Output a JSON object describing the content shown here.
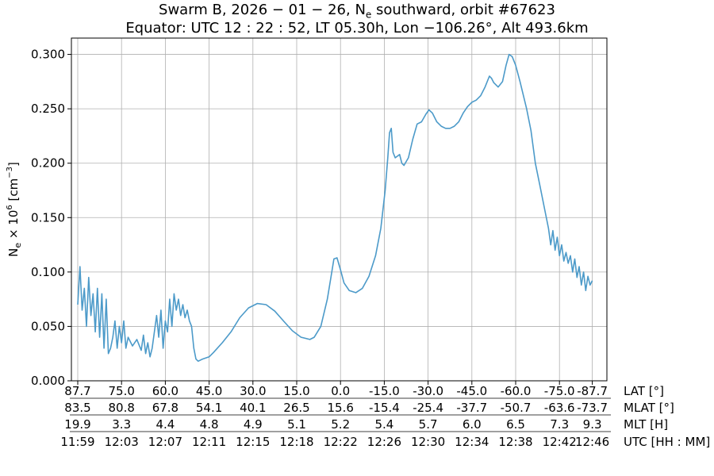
{
  "title": {
    "line1_prefix": "Swarm B,  2026 − 01 − 26,  N",
    "line1_sub": "e",
    "line1_suffix": " southward,  orbit #67623",
    "line2": "Equator:  UTC 12 : 22 : 52,  LT 05.30h,  Lon  −106.26°,  Alt 493.6km"
  },
  "chart_data": {
    "type": "line",
    "ylabel": "N_e × 10^6 [cm^-3]",
    "ylim": [
      0.0,
      0.315
    ],
    "yticks": [
      "0.000",
      "0.050",
      "0.100",
      "0.150",
      "0.200",
      "0.250",
      "0.300"
    ],
    "grid": true,
    "line_color": "#4c9ac9",
    "x_tick_rows": [
      {
        "label": "LAT [°]",
        "values": [
          "87.7",
          "75.0",
          "60.0",
          "45.0",
          "30.0",
          "15.0",
          "0.0",
          "-15.0",
          "-30.0",
          "-45.0",
          "-60.0",
          "-75.0",
          "-87.7"
        ]
      },
      {
        "label": "MLAT [°]",
        "values": [
          "83.5",
          "80.8",
          "67.8",
          "54.1",
          "40.1",
          "26.5",
          "15.6",
          "-15.4",
          "-25.4",
          "-37.7",
          "-50.7",
          "-63.6",
          "-73.7"
        ]
      },
      {
        "label": "MLT [H]",
        "values": [
          "19.9",
          "3.3",
          "4.4",
          "4.8",
          "4.9",
          "5.1",
          "5.2",
          "5.4",
          "5.7",
          "6.0",
          "6.5",
          "7.3",
          "9.3"
        ]
      },
      {
        "label": "UTC [HH : MM]",
        "values": [
          "11:59",
          "12:03",
          "12:07",
          "12:11",
          "12:15",
          "12:18",
          "12:22",
          "12:26",
          "12:30",
          "12:34",
          "12:38",
          "12:42",
          "12:46"
        ]
      }
    ],
    "x_positions": [
      0,
      1,
      2,
      3,
      4,
      5,
      6,
      7,
      8,
      9,
      10,
      11,
      11.75
    ],
    "series": [
      {
        "points": [
          [
            0.0,
            0.07
          ],
          [
            0.05,
            0.105
          ],
          [
            0.1,
            0.065
          ],
          [
            0.15,
            0.085
          ],
          [
            0.2,
            0.05
          ],
          [
            0.25,
            0.095
          ],
          [
            0.3,
            0.06
          ],
          [
            0.35,
            0.08
          ],
          [
            0.4,
            0.045
          ],
          [
            0.45,
            0.085
          ],
          [
            0.5,
            0.04
          ],
          [
            0.55,
            0.08
          ],
          [
            0.6,
            0.03
          ],
          [
            0.65,
            0.075
          ],
          [
            0.7,
            0.025
          ],
          [
            0.75,
            0.03
          ],
          [
            0.8,
            0.04
          ],
          [
            0.85,
            0.055
          ],
          [
            0.9,
            0.03
          ],
          [
            0.95,
            0.05
          ],
          [
            1.0,
            0.035
          ],
          [
            1.05,
            0.055
          ],
          [
            1.1,
            0.03
          ],
          [
            1.15,
            0.04
          ],
          [
            1.25,
            0.032
          ],
          [
            1.35,
            0.038
          ],
          [
            1.45,
            0.028
          ],
          [
            1.5,
            0.042
          ],
          [
            1.55,
            0.025
          ],
          [
            1.6,
            0.035
          ],
          [
            1.65,
            0.022
          ],
          [
            1.7,
            0.03
          ],
          [
            1.75,
            0.045
          ],
          [
            1.8,
            0.06
          ],
          [
            1.85,
            0.04
          ],
          [
            1.9,
            0.065
          ],
          [
            1.95,
            0.03
          ],
          [
            2.0,
            0.055
          ],
          [
            2.05,
            0.045
          ],
          [
            2.1,
            0.075
          ],
          [
            2.15,
            0.05
          ],
          [
            2.2,
            0.08
          ],
          [
            2.25,
            0.065
          ],
          [
            2.3,
            0.075
          ],
          [
            2.35,
            0.06
          ],
          [
            2.4,
            0.07
          ],
          [
            2.45,
            0.058
          ],
          [
            2.5,
            0.065
          ],
          [
            2.55,
            0.055
          ],
          [
            2.6,
            0.05
          ],
          [
            2.65,
            0.03
          ],
          [
            2.7,
            0.02
          ],
          [
            2.75,
            0.018
          ],
          [
            2.85,
            0.02
          ],
          [
            3.0,
            0.022
          ],
          [
            3.1,
            0.026
          ],
          [
            3.3,
            0.035
          ],
          [
            3.5,
            0.045
          ],
          [
            3.7,
            0.058
          ],
          [
            3.9,
            0.067
          ],
          [
            4.1,
            0.071
          ],
          [
            4.3,
            0.07
          ],
          [
            4.5,
            0.064
          ],
          [
            4.7,
            0.055
          ],
          [
            4.9,
            0.046
          ],
          [
            5.1,
            0.04
          ],
          [
            5.3,
            0.038
          ],
          [
            5.4,
            0.04
          ],
          [
            5.55,
            0.05
          ],
          [
            5.7,
            0.075
          ],
          [
            5.78,
            0.095
          ],
          [
            5.85,
            0.112
          ],
          [
            5.92,
            0.113
          ],
          [
            6.0,
            0.102
          ],
          [
            6.08,
            0.09
          ],
          [
            6.2,
            0.083
          ],
          [
            6.35,
            0.081
          ],
          [
            6.5,
            0.085
          ],
          [
            6.65,
            0.096
          ],
          [
            6.8,
            0.115
          ],
          [
            6.92,
            0.14
          ],
          [
            7.02,
            0.175
          ],
          [
            7.08,
            0.205
          ],
          [
            7.12,
            0.228
          ],
          [
            7.16,
            0.232
          ],
          [
            7.2,
            0.21
          ],
          [
            7.25,
            0.205
          ],
          [
            7.35,
            0.208
          ],
          [
            7.4,
            0.2
          ],
          [
            7.45,
            0.198
          ],
          [
            7.55,
            0.205
          ],
          [
            7.65,
            0.222
          ],
          [
            7.75,
            0.236
          ],
          [
            7.85,
            0.238
          ],
          [
            7.95,
            0.245
          ],
          [
            8.02,
            0.249
          ],
          [
            8.1,
            0.246
          ],
          [
            8.2,
            0.238
          ],
          [
            8.3,
            0.234
          ],
          [
            8.4,
            0.232
          ],
          [
            8.5,
            0.232
          ],
          [
            8.6,
            0.234
          ],
          [
            8.7,
            0.238
          ],
          [
            8.8,
            0.246
          ],
          [
            8.9,
            0.252
          ],
          [
            9.0,
            0.256
          ],
          [
            9.1,
            0.258
          ],
          [
            9.2,
            0.262
          ],
          [
            9.3,
            0.27
          ],
          [
            9.4,
            0.28
          ],
          [
            9.45,
            0.278
          ],
          [
            9.5,
            0.274
          ],
          [
            9.6,
            0.27
          ],
          [
            9.7,
            0.275
          ],
          [
            9.78,
            0.29
          ],
          [
            9.85,
            0.3
          ],
          [
            9.92,
            0.298
          ],
          [
            10.0,
            0.29
          ],
          [
            10.1,
            0.275
          ],
          [
            10.25,
            0.25
          ],
          [
            10.35,
            0.23
          ],
          [
            10.45,
            0.2
          ],
          [
            10.55,
            0.18
          ],
          [
            10.65,
            0.16
          ],
          [
            10.75,
            0.14
          ],
          [
            10.8,
            0.125
          ],
          [
            10.85,
            0.138
          ],
          [
            10.9,
            0.12
          ],
          [
            10.95,
            0.132
          ],
          [
            11.0,
            0.115
          ],
          [
            11.05,
            0.125
          ],
          [
            11.1,
            0.11
          ],
          [
            11.15,
            0.118
          ],
          [
            11.2,
            0.108
          ],
          [
            11.25,
            0.115
          ],
          [
            11.3,
            0.1
          ],
          [
            11.35,
            0.112
          ],
          [
            11.4,
            0.095
          ],
          [
            11.45,
            0.105
          ],
          [
            11.5,
            0.088
          ],
          [
            11.55,
            0.1
          ],
          [
            11.6,
            0.083
          ],
          [
            11.65,
            0.096
          ],
          [
            11.7,
            0.088
          ],
          [
            11.75,
            0.092
          ]
        ]
      }
    ]
  }
}
